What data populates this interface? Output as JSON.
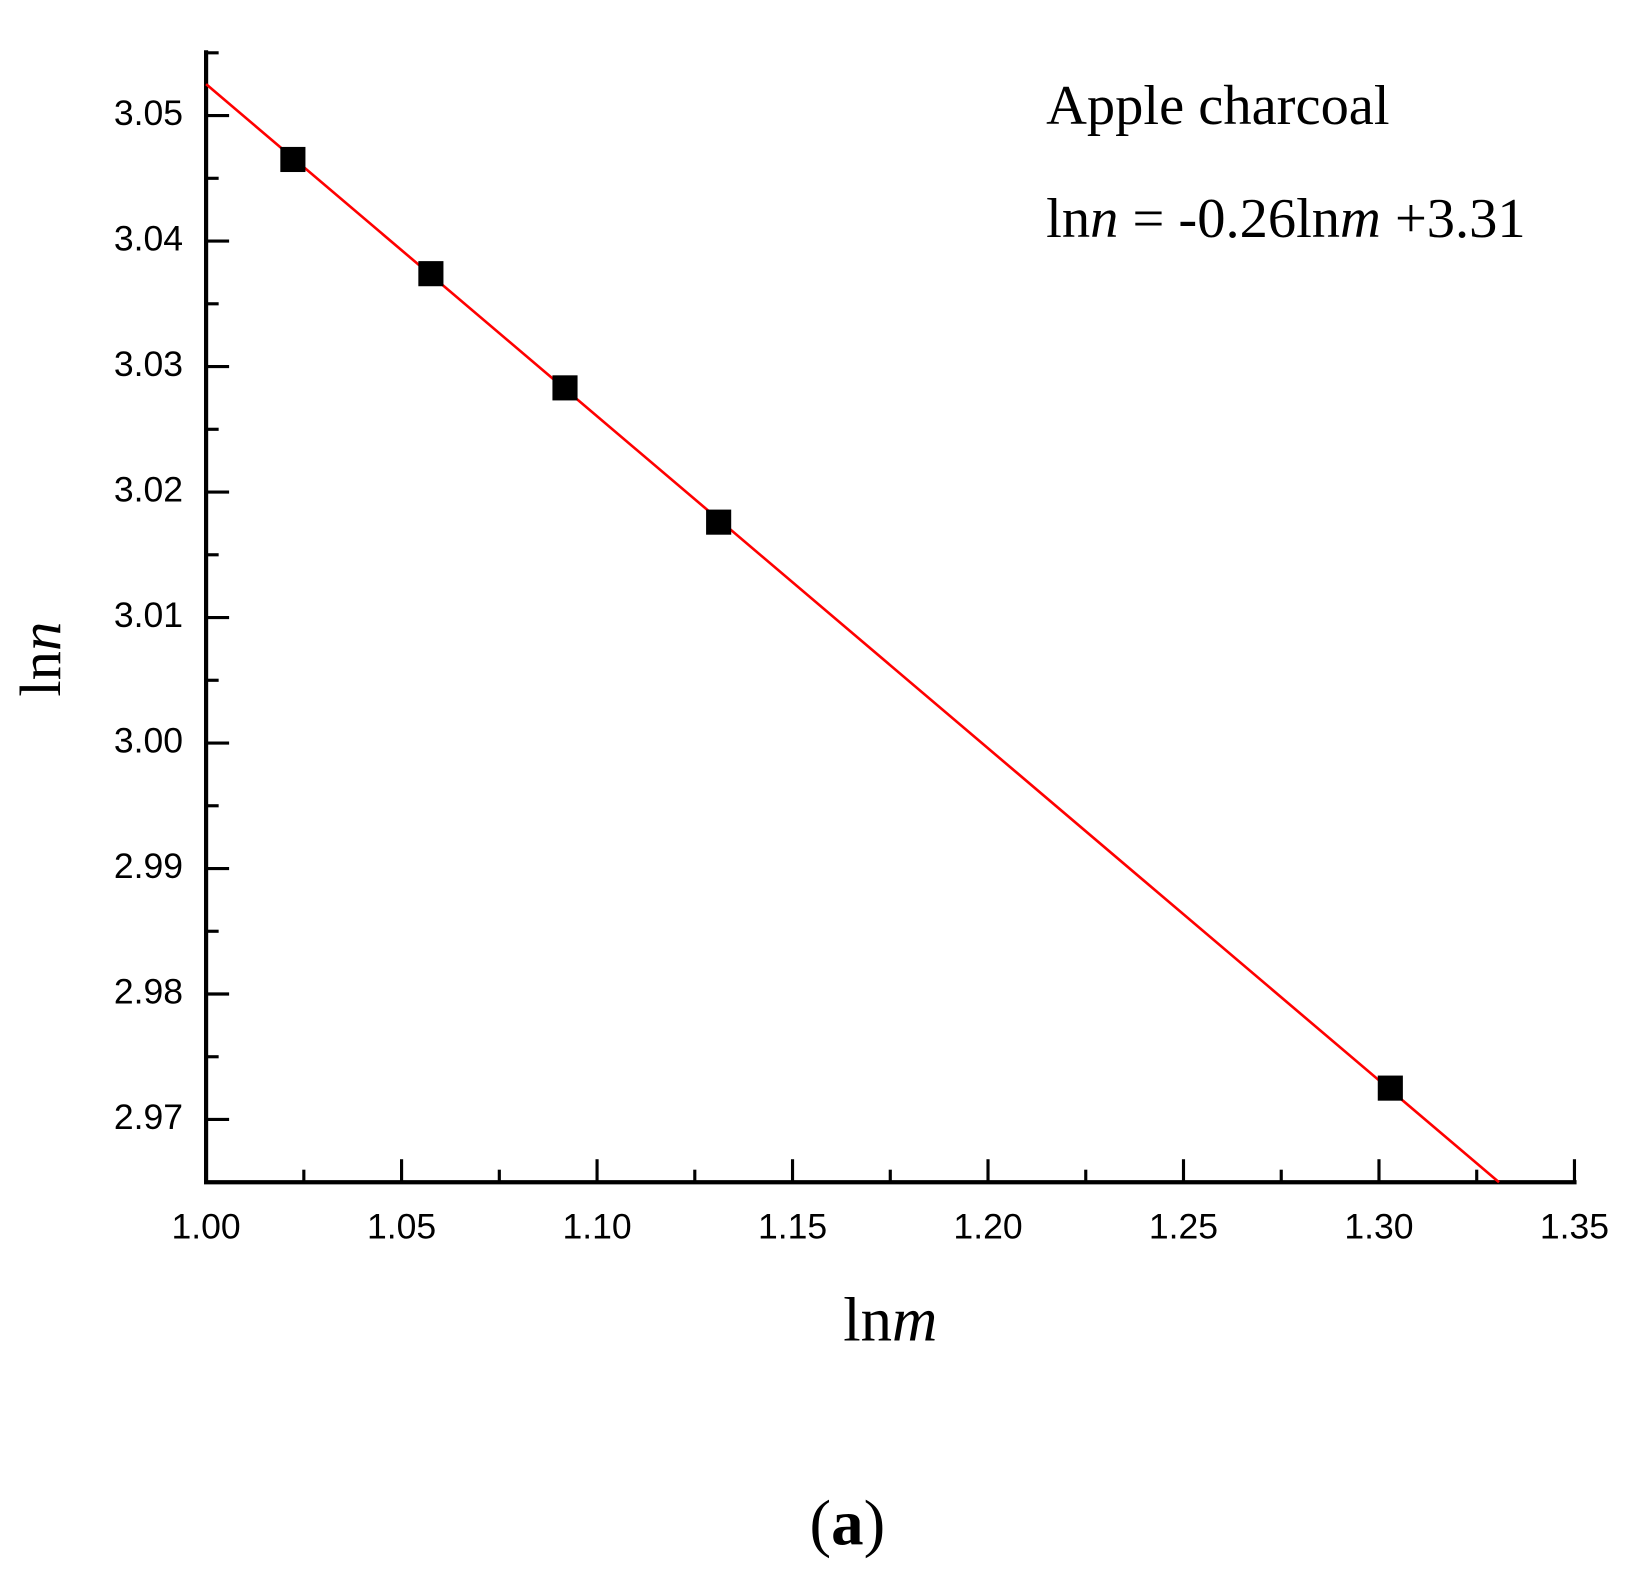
{
  "chart_data": {
    "type": "scatter",
    "xlabel": [
      {
        "text": "ln"
      },
      {
        "text": "m",
        "italic": true
      }
    ],
    "ylabel": [
      {
        "text": "ln"
      },
      {
        "text": "n",
        "italic": true
      }
    ],
    "annotations": [
      {
        "parts": [
          {
            "text": "Apple charcoal"
          }
        ]
      },
      {
        "parts": [
          {
            "text": "ln"
          },
          {
            "text": "n",
            "italic": true
          },
          {
            "text": " = -0.26ln"
          },
          {
            "text": "m",
            "italic": true
          },
          {
            "text": " +3.31"
          }
        ]
      }
    ],
    "panel_label": [
      {
        "text": "("
      },
      {
        "text": "a",
        "bold": true
      },
      {
        "text": ")"
      }
    ],
    "series": [
      {
        "color": "#000000",
        "marker": "square",
        "x": [
          1.0222,
          1.0575,
          1.0918,
          1.1311,
          1.3029
        ],
        "values": [
          3.0465,
          3.0374,
          3.0283,
          3.0176,
          2.9725
        ]
      }
    ],
    "fit_line": {
      "color": "#ff0000",
      "x": [
        1.0,
        1.3307
      ],
      "values": [
        3.0525,
        2.965
      ]
    },
    "xlim": [
      1.0,
      1.35
    ],
    "ylim": [
      2.965,
      3.0552
    ],
    "xticks": [
      {
        "value": 1.0,
        "label": "1.00"
      },
      1.05,
      {
        "value": 1.1,
        "label": "1.10"
      },
      1.15,
      {
        "value": 1.2,
        "label": "1.20"
      },
      1.25,
      {
        "value": 1.3,
        "label": "1.30"
      },
      1.35
    ],
    "yticks": [
      2.97,
      2.98,
      2.99,
      {
        "value": 3.0,
        "label": "3.00"
      },
      3.01,
      3.02,
      3.03,
      3.04,
      3.05
    ],
    "x_minor_ticks": [
      1.025,
      1.075,
      1.125,
      1.175,
      1.225,
      1.275,
      1.325
    ],
    "y_minor_ticks": [
      2.975,
      2.985,
      2.995,
      3.005,
      3.015,
      3.025,
      3.035,
      3.045,
      3.055
    ]
  }
}
